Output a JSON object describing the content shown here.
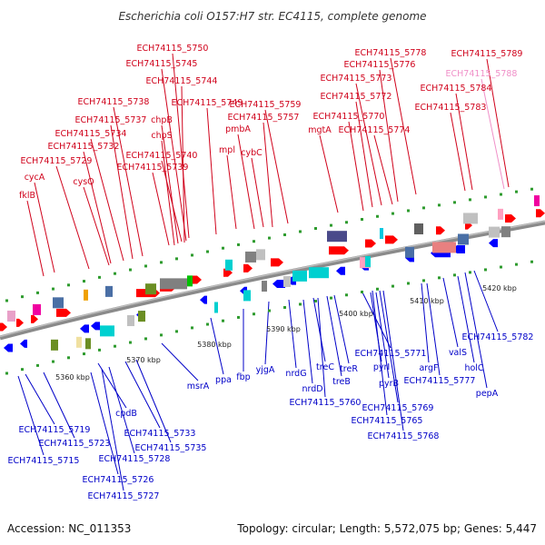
{
  "title": "Escherichia coli O157:H7 str. EC4115, complete genome",
  "footer": {
    "accession": "Accession: NC_011353",
    "summary": "Topology: circular; Length: 5,572,075 bp; Genes: 5,447"
  },
  "colors": {
    "forward_label": "#d0021b",
    "reverse_label": "#0000c8",
    "faded_label": "#f090c8",
    "backbone": "#888888",
    "forward_arrow": "#ff0000",
    "reverse_arrow": "#0000ff"
  },
  "ticks": [
    "5360 kbp",
    "5370 kbp",
    "5380 kbp",
    "5390 kbp",
    "5400 kbp",
    "5410 kbp",
    "5420 kbp"
  ],
  "forward_labels": [
    "ECH74115_5750",
    "ECH74115_5745",
    "ECH74115_5744",
    "ECH74115_5738",
    "ECH74115_5749",
    "ECH74115_5737",
    "chpB",
    "ECH74115_5759",
    "ECH74115_5734",
    "chpS",
    "pmbA",
    "ECH74115_5757",
    "ECH74115_5732",
    "ECH74115_5740",
    "mpl",
    "cybC",
    "ECH74115_5729",
    "ECH74115_5739",
    "cycA",
    "cysQ",
    "fklB",
    "ECH74115_5778",
    "ECH74115_5776",
    "ECH74115_5773",
    "ECH74115_5772",
    "ECH74115_5770",
    "mgtA",
    "ECH74115_5774",
    "ECH74115_5789",
    "ECH74115_5788",
    "ECH74115_5784",
    "ECH74115_5783"
  ],
  "reverse_labels": [
    "ECH74115_5719",
    "ECH74115_5723",
    "ECH74115_5715",
    "cpdB",
    "ECH74115_5733",
    "ECH74115_5728",
    "ECH74115_5735",
    "ECH74115_5726",
    "ECH74115_5727",
    "msrA",
    "ppa",
    "fbp",
    "yjgA",
    "nrdG",
    "nrdD",
    "treC",
    "treB",
    "treR",
    "ECH74115_5760",
    "pyrI",
    "pyrB",
    "ECH74115_5771",
    "ECH74115_5769",
    "ECH74115_5765",
    "ECH74115_5768",
    "argF",
    "ECH74115_5777",
    "valS",
    "holC",
    "pepA",
    "ECH74115_5782"
  ]
}
